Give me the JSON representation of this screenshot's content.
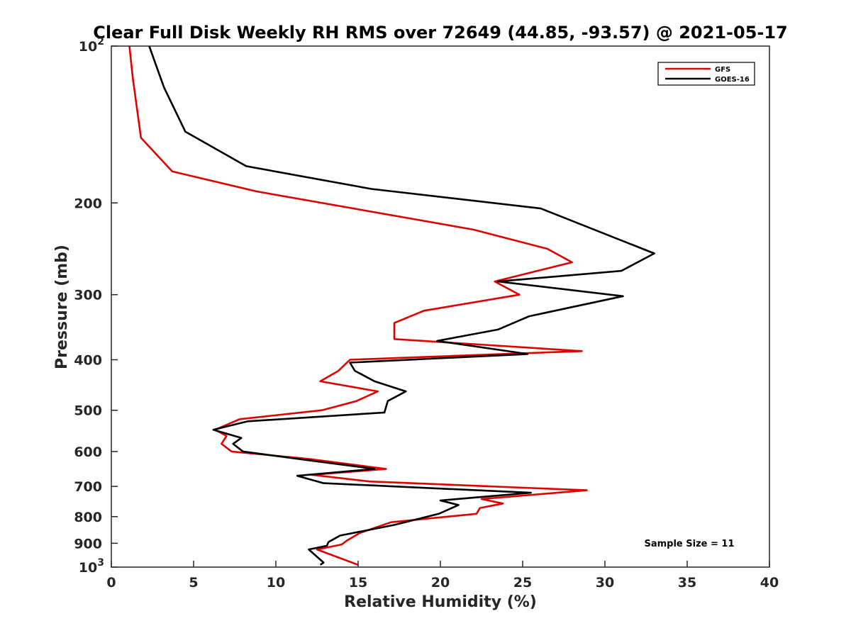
{
  "chart_data": {
    "type": "line",
    "title": "Clear Full Disk Weekly RH RMS over 72649 (44.85, -93.57) @ 2021-05-17",
    "xlabel": "Relative Humidity (%)",
    "ylabel": "Pressure (mb)",
    "xlim": [
      0,
      40
    ],
    "ylim": [
      100,
      1000
    ],
    "y_scale": "log",
    "y_reversed": true,
    "grid": false,
    "legend_position": "top-right",
    "x_ticks": [
      "0",
      "5",
      "10",
      "15",
      "20",
      "25",
      "30",
      "35",
      "40"
    ],
    "x_tick_values": [
      0,
      5,
      10,
      15,
      20,
      25,
      30,
      35,
      40
    ],
    "y_ticks": [
      {
        "value": 100,
        "base": "10",
        "exp": "2",
        "label": ""
      },
      {
        "value": 200,
        "base": "",
        "exp": "",
        "label": "200"
      },
      {
        "value": 300,
        "base": "",
        "exp": "",
        "label": "300"
      },
      {
        "value": 400,
        "base": "",
        "exp": "",
        "label": "400"
      },
      {
        "value": 500,
        "base": "",
        "exp": "",
        "label": "500"
      },
      {
        "value": 600,
        "base": "",
        "exp": "",
        "label": "600"
      },
      {
        "value": 700,
        "base": "",
        "exp": "",
        "label": "700"
      },
      {
        "value": 800,
        "base": "",
        "exp": "",
        "label": "800"
      },
      {
        "value": 900,
        "base": "",
        "exp": "",
        "label": "900"
      },
      {
        "value": 1000,
        "base": "10",
        "exp": "3",
        "label": ""
      }
    ],
    "annotation": "Sample Size = 11",
    "series": [
      {
        "name": "GFS",
        "color": "#e00000",
        "points": [
          [
            1.1,
            100
          ],
          [
            1.3,
            115
          ],
          [
            1.8,
            150
          ],
          [
            3.7,
            174
          ],
          [
            8.8,
            190
          ],
          [
            22.0,
            225
          ],
          [
            26.5,
            245
          ],
          [
            28.0,
            260
          ],
          [
            23.3,
            283
          ],
          [
            24.8,
            300
          ],
          [
            19.0,
            322
          ],
          [
            17.2,
            340
          ],
          [
            17.2,
            365
          ],
          [
            28.6,
            385
          ],
          [
            14.5,
            400
          ],
          [
            13.8,
            420
          ],
          [
            12.7,
            440
          ],
          [
            16.2,
            460
          ],
          [
            14.9,
            480
          ],
          [
            12.8,
            500
          ],
          [
            7.8,
            520
          ],
          [
            6.3,
            545
          ],
          [
            7.0,
            560
          ],
          [
            6.7,
            580
          ],
          [
            7.3,
            600
          ],
          [
            12.0,
            620
          ],
          [
            16.7,
            648
          ],
          [
            12.2,
            665
          ],
          [
            15.7,
            685
          ],
          [
            28.9,
            712
          ],
          [
            22.5,
            740
          ],
          [
            23.8,
            755
          ],
          [
            22.4,
            770
          ],
          [
            22.2,
            790
          ],
          [
            17.0,
            820
          ],
          [
            15.1,
            860
          ],
          [
            14.3,
            890
          ],
          [
            14.0,
            905
          ],
          [
            12.5,
            925
          ],
          [
            15.0,
            990
          ]
        ]
      },
      {
        "name": "GOES-16",
        "color": "#000000",
        "points": [
          [
            2.3,
            100
          ],
          [
            3.2,
            120
          ],
          [
            4.5,
            146
          ],
          [
            8.2,
            170
          ],
          [
            15.8,
            188
          ],
          [
            26.1,
            205
          ],
          [
            33.0,
            250
          ],
          [
            31.0,
            270
          ],
          [
            23.5,
            283
          ],
          [
            31.1,
            302
          ],
          [
            25.4,
            330
          ],
          [
            23.5,
            350
          ],
          [
            19.8,
            368
          ],
          [
            25.3,
            390
          ],
          [
            14.5,
            405
          ],
          [
            14.8,
            420
          ],
          [
            16.0,
            440
          ],
          [
            17.9,
            460
          ],
          [
            16.8,
            480
          ],
          [
            16.6,
            505
          ],
          [
            8.3,
            525
          ],
          [
            6.2,
            545
          ],
          [
            7.9,
            565
          ],
          [
            7.4,
            580
          ],
          [
            8.0,
            600
          ],
          [
            12.2,
            625
          ],
          [
            16.0,
            648
          ],
          [
            11.3,
            668
          ],
          [
            12.9,
            690
          ],
          [
            25.5,
            720
          ],
          [
            20.0,
            745
          ],
          [
            21.1,
            760
          ],
          [
            20.7,
            770
          ],
          [
            19.9,
            790
          ],
          [
            17.2,
            830
          ],
          [
            13.9,
            870
          ],
          [
            13.2,
            895
          ],
          [
            13.1,
            910
          ],
          [
            12.0,
            925
          ],
          [
            12.9,
            980
          ],
          [
            12.7,
            990
          ]
        ]
      }
    ]
  }
}
